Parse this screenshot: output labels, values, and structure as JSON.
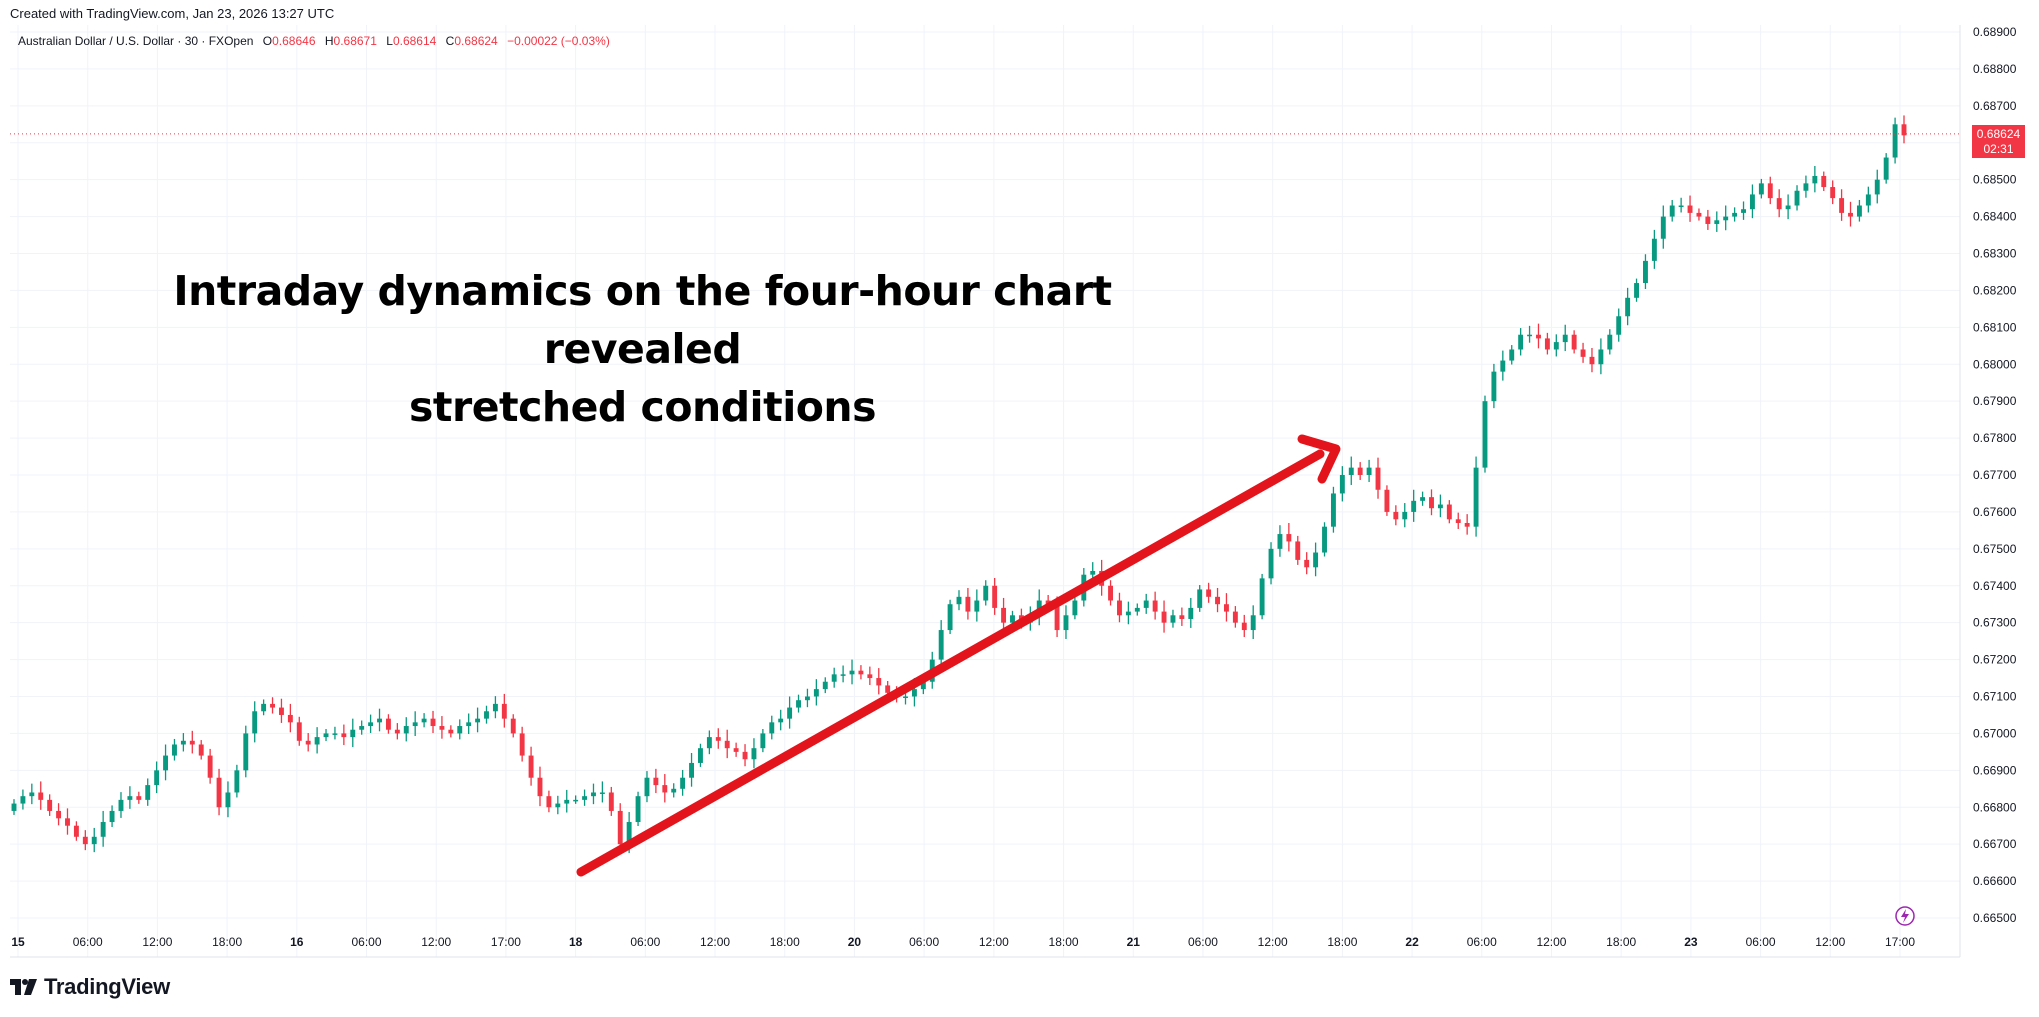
{
  "header": {
    "created_text": "Created with TradingView.com, Jan 23, 2026 13:27 UTC"
  },
  "symbol": {
    "name": "Australian Dollar / U.S. Dollar · 30 · FXOpen",
    "o_label": "O",
    "o_value": "0.68646",
    "h_label": "H",
    "h_value": "0.68671",
    "l_label": "L",
    "l_value": "0.68614",
    "c_label": "C",
    "c_value": "0.68624",
    "change": "−0.00022 (−0.03%)"
  },
  "headline": {
    "line1": "Intraday dynamics on the four-hour chart revealed",
    "line2": "stretched conditions"
  },
  "price_tag": {
    "price": "0.68624",
    "countdown": "02:31"
  },
  "logo": {
    "text": "TradingView",
    "icon": "tradingview-logo-icon"
  },
  "colors": {
    "up": "#089981",
    "down": "#f23645",
    "arrow": "#e3141b",
    "grid": "#f0f3fa"
  },
  "chart_data": {
    "type": "candlestick",
    "symbol": "AUDUSD",
    "interval": "30",
    "ylim": [
      0.665,
      0.689
    ],
    "y_ticks": [
      "0.68900",
      "0.68800",
      "0.68700",
      "0.68600",
      "0.68500",
      "0.68400",
      "0.68300",
      "0.68200",
      "0.68100",
      "0.68000",
      "0.67900",
      "0.67800",
      "0.67700",
      "0.67600",
      "0.67500",
      "0.67400",
      "0.67300",
      "0.67200",
      "0.67100",
      "0.67000",
      "0.66900",
      "0.66800",
      "0.66700",
      "0.66600",
      "0.66500"
    ],
    "x_ticks": [
      "15",
      "06:00",
      "12:00",
      "18:00",
      "16",
      "06:00",
      "12:00",
      "17:00",
      "18",
      "06:00",
      "12:00",
      "18:00",
      "20",
      "06:00",
      "12:00",
      "18:00",
      "21",
      "06:00",
      "12:00",
      "18:00",
      "22",
      "06:00",
      "12:00",
      "18:00",
      "23",
      "06:00",
      "12:00",
      "17:00"
    ],
    "close_path": [
      0.6681,
      0.6683,
      0.6684,
      0.6682,
      0.6679,
      0.6677,
      0.6675,
      0.6672,
      0.667,
      0.6672,
      0.6676,
      0.6679,
      0.6682,
      0.6683,
      0.6682,
      0.6686,
      0.669,
      0.6694,
      0.6697,
      0.6698,
      0.6697,
      0.6694,
      0.6688,
      0.668,
      0.6684,
      0.669,
      0.67,
      0.6706,
      0.6708,
      0.6707,
      0.6705,
      0.6703,
      0.6698,
      0.6697,
      0.6699,
      0.67,
      0.67,
      0.6699,
      0.6701,
      0.6702,
      0.6703,
      0.6704,
      0.6701,
      0.67,
      0.6702,
      0.6703,
      0.6704,
      0.6702,
      0.6701,
      0.67,
      0.6702,
      0.6703,
      0.6704,
      0.6706,
      0.6708,
      0.6704,
      0.67,
      0.6694,
      0.6688,
      0.6683,
      0.668,
      0.6681,
      0.6682,
      0.6682,
      0.6683,
      0.6684,
      0.6684,
      0.6679,
      0.667,
      0.6676,
      0.6683,
      0.6688,
      0.6686,
      0.6684,
      0.6685,
      0.6688,
      0.6692,
      0.6696,
      0.6699,
      0.6698,
      0.6696,
      0.6695,
      0.6693,
      0.6696,
      0.67,
      0.6703,
      0.6704,
      0.6707,
      0.6709,
      0.671,
      0.6712,
      0.6714,
      0.6716,
      0.6716,
      0.6717,
      0.6716,
      0.6715,
      0.6713,
      0.6711,
      0.671,
      0.671,
      0.6712,
      0.6714,
      0.672,
      0.6728,
      0.6735,
      0.6737,
      0.6733,
      0.6736,
      0.674,
      0.6734,
      0.673,
      0.6732,
      0.673,
      0.6732,
      0.6736,
      0.6735,
      0.6728,
      0.6732,
      0.6736,
      0.6743,
      0.6744,
      0.674,
      0.6736,
      0.6732,
      0.6733,
      0.6734,
      0.6736,
      0.6733,
      0.673,
      0.6732,
      0.6731,
      0.6734,
      0.6739,
      0.6737,
      0.6735,
      0.6733,
      0.673,
      0.6728,
      0.6732,
      0.6742,
      0.675,
      0.6754,
      0.6752,
      0.6747,
      0.6745,
      0.6749,
      0.6756,
      0.6765,
      0.677,
      0.6772,
      0.677,
      0.6772,
      0.6766,
      0.676,
      0.6758,
      0.676,
      0.6763,
      0.6764,
      0.6761,
      0.6762,
      0.6758,
      0.6757,
      0.6756,
      0.6772,
      0.679,
      0.6798,
      0.6801,
      0.6804,
      0.6808,
      0.6808,
      0.6807,
      0.6804,
      0.6806,
      0.6808,
      0.6804,
      0.6802,
      0.68,
      0.6804,
      0.6808,
      0.6813,
      0.6818,
      0.6822,
      0.6828,
      0.6834,
      0.684,
      0.6843,
      0.6843,
      0.6841,
      0.684,
      0.6838,
      0.6839,
      0.684,
      0.6841,
      0.6842,
      0.6846,
      0.6849,
      0.6845,
      0.6842,
      0.6843,
      0.6847,
      0.6849,
      0.6851,
      0.6848,
      0.6845,
      0.6841,
      0.684,
      0.6843,
      0.6846,
      0.685,
      0.6856,
      0.6865,
      0.6862
    ],
    "annotation": "arrow from 18th low to 21st afternoon high"
  }
}
